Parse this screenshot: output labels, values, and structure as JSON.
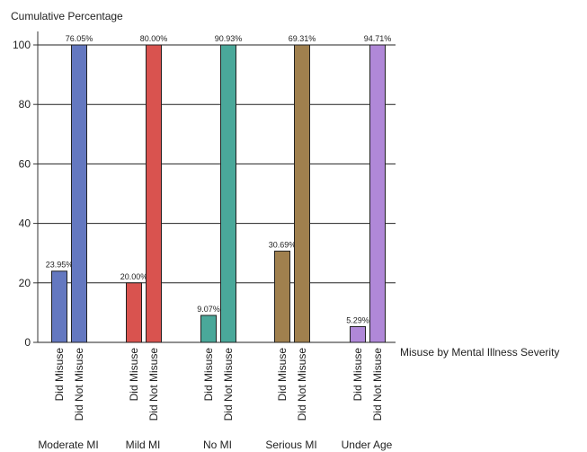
{
  "chart_data": {
    "type": "bar",
    "ylabel": "Cumulative Percentage",
    "xlabel": "Misuse by Mental Illness Severity",
    "ylim": [
      0,
      105
    ],
    "yticks": [
      0,
      20,
      40,
      60,
      80,
      100
    ],
    "grid": true,
    "categories": [
      "Did Misuse",
      "Did Not Misuse"
    ],
    "groups": [
      {
        "name": "Moderate MI",
        "color": "#6478c0",
        "bars": [
          {
            "category": "Did Misuse",
            "value": 23.95,
            "label": "23.95%"
          },
          {
            "category": "Did Not Misuse",
            "value": 100,
            "label": "76.05%"
          }
        ]
      },
      {
        "name": "Mild MI",
        "color": "#d9534f",
        "bars": [
          {
            "category": "Did Misuse",
            "value": 20.0,
            "label": "20.00%"
          },
          {
            "category": "Did Not Misuse",
            "value": 100,
            "label": "80.00%"
          }
        ]
      },
      {
        "name": "No MI",
        "color": "#4aa89a",
        "bars": [
          {
            "category": "Did Misuse",
            "value": 9.07,
            "label": "9.07%"
          },
          {
            "category": "Did Not Misuse",
            "value": 100,
            "label": "90.93%"
          }
        ]
      },
      {
        "name": "Serious MI",
        "color": "#a0804e",
        "bars": [
          {
            "category": "Did Misuse",
            "value": 30.69,
            "label": "30.69%"
          },
          {
            "category": "Did Not Misuse",
            "value": 100,
            "label": "69.31%"
          }
        ]
      },
      {
        "name": "Under Age",
        "color": "#b088d8",
        "bars": [
          {
            "category": "Did Misuse",
            "value": 5.29,
            "label": "5.29%"
          },
          {
            "category": "Did Not Misuse",
            "value": 100,
            "label": "94.71%"
          }
        ]
      }
    ]
  }
}
